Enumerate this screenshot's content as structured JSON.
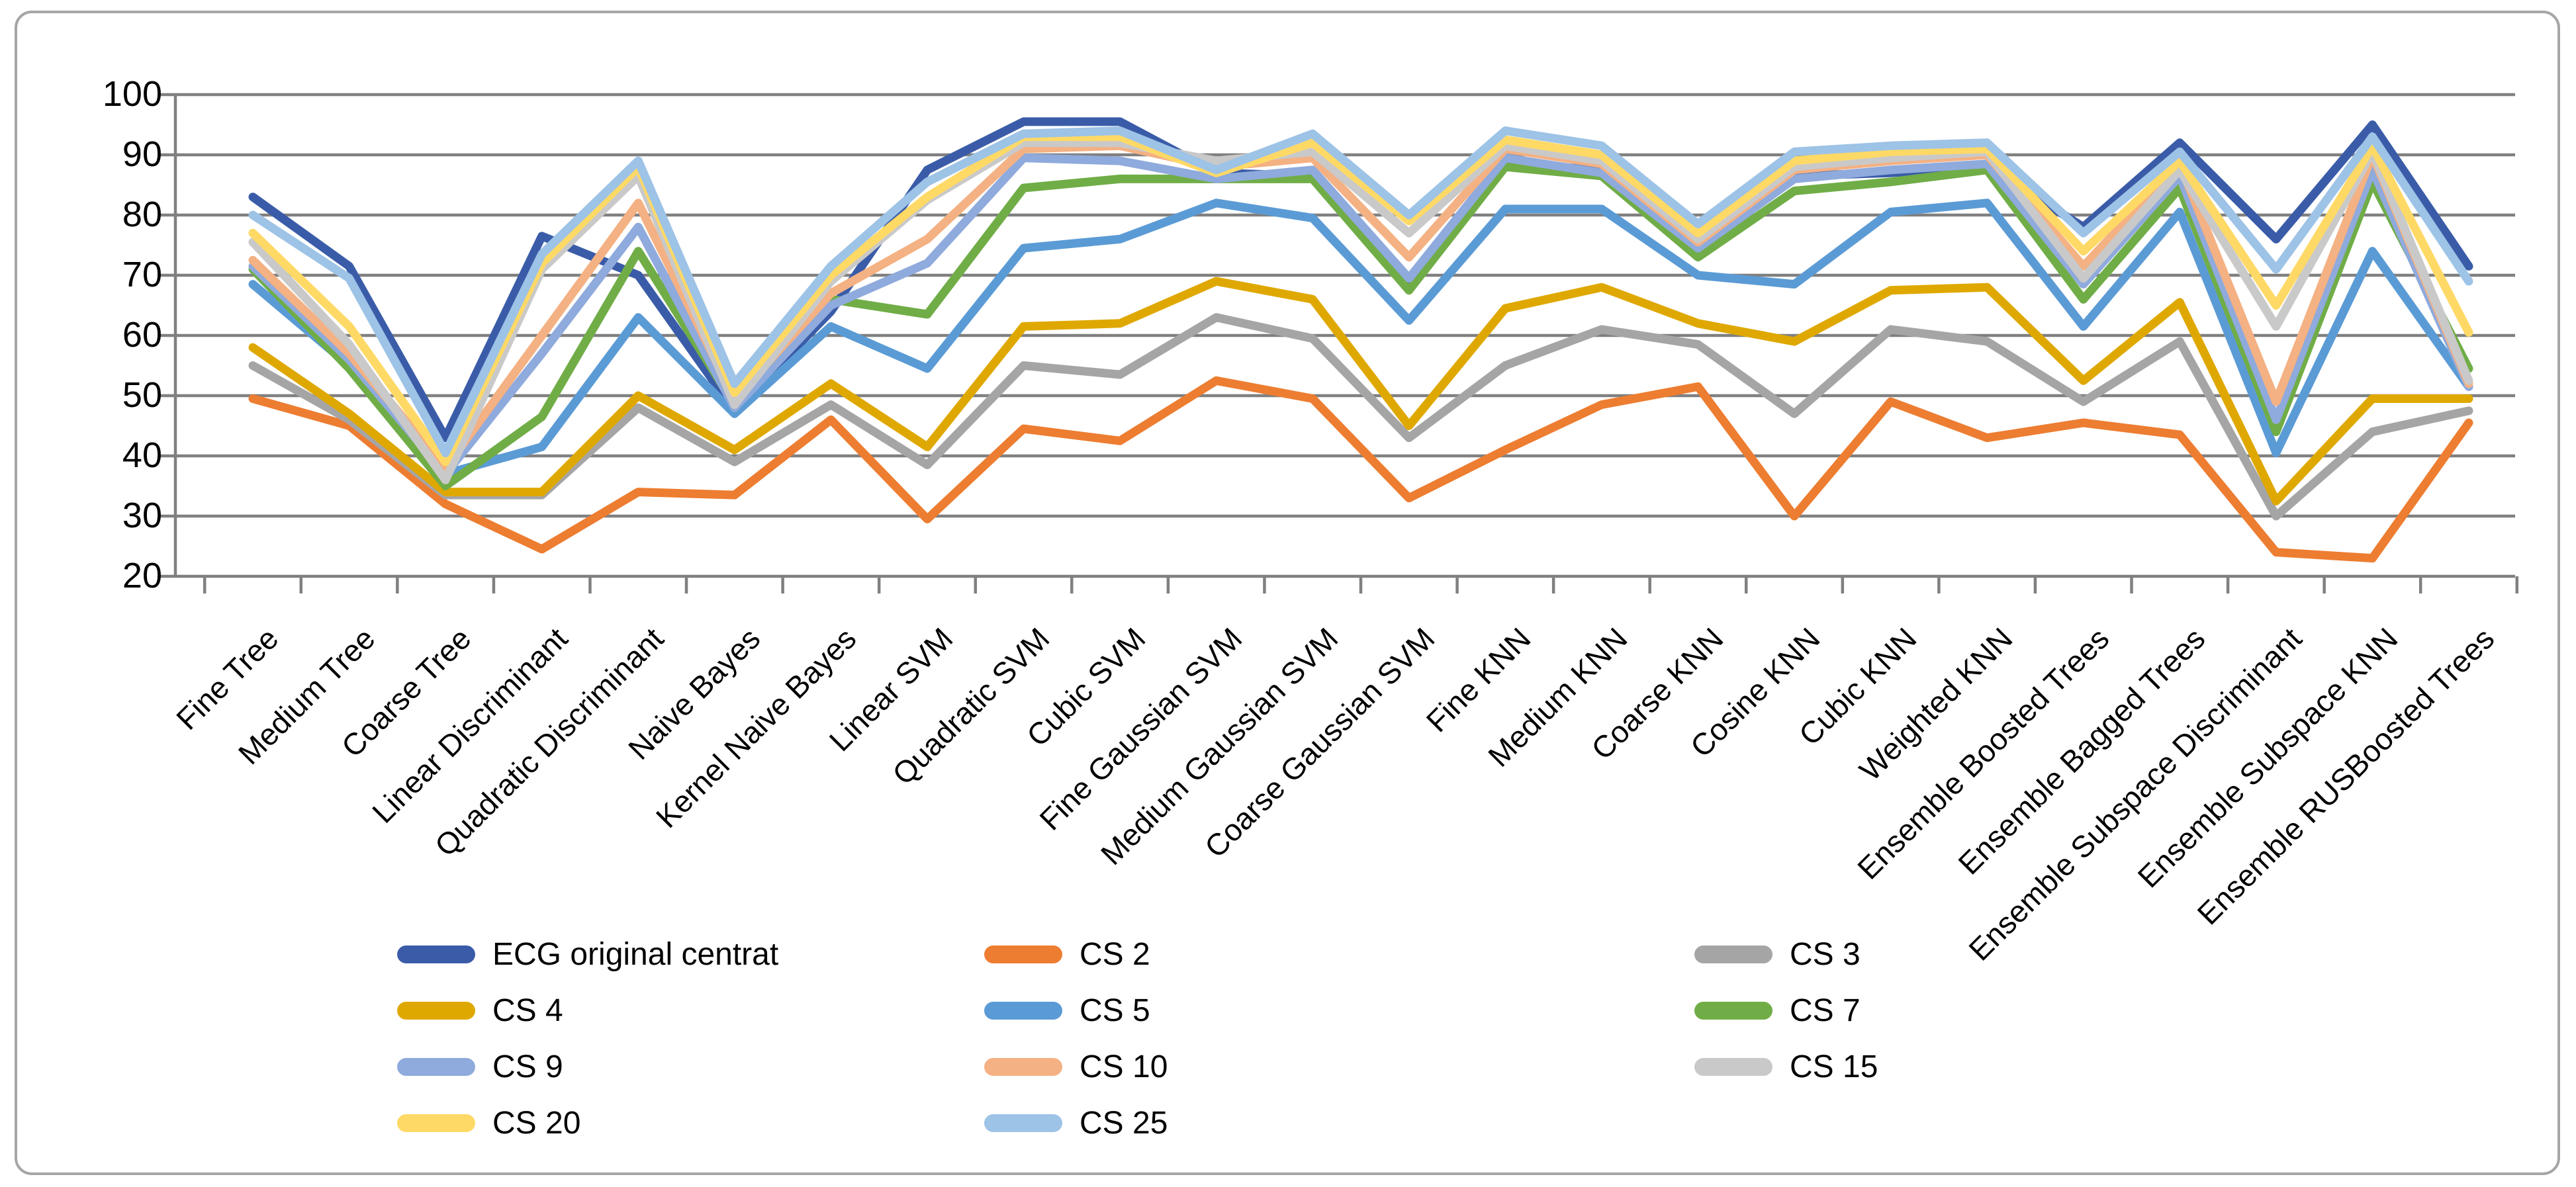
{
  "chart_data": {
    "type": "line",
    "title": "",
    "xlabel": "",
    "ylabel": "",
    "ylim": [
      20,
      100
    ],
    "ytick_step": 10,
    "grid": "horizontal",
    "legend_position": "bottom",
    "categories": [
      "Fine Tree",
      "Medium Tree",
      "Coarse Tree",
      "Linear Discriminant",
      "Quadratic Discriminant",
      "Naive Bayes",
      "Kernel Naive Bayes",
      "Linear SVM",
      "Quadratic SVM",
      "Cubic SVM",
      "Fine Gaussian SVM",
      "Medium Gaussian SVM",
      "Coarse Gaussian SVM",
      "Fine KNN",
      "Medium KNN",
      "Coarse KNN",
      "Cosine KNN",
      "Cubic KNN",
      "Weighted KNN",
      "Ensemble Boosted Trees",
      "Ensemble Bagged Trees",
      "Ensemble Subspace Discriminant",
      "Ensemble Subspace KNN",
      "Ensemble RUSBoosted Trees"
    ],
    "series": [
      {
        "name": "ECG original centrat",
        "color": "#3A5CA8",
        "values": [
          83,
          71.5,
          43,
          76.5,
          70,
          47.5,
          64,
          87.5,
          95.5,
          95.5,
          87,
          86.5,
          68.5,
          88.5,
          87.5,
          74,
          86.5,
          87,
          88,
          78,
          92,
          76,
          95,
          71.5
        ]
      },
      {
        "name": "CS 2",
        "color": "#ED7D31",
        "values": [
          49.5,
          45,
          32,
          24.5,
          34,
          33.5,
          46,
          29.5,
          44.5,
          42.5,
          52.5,
          49.5,
          33,
          41,
          48.5,
          51.5,
          30,
          49,
          43,
          45.5,
          43.5,
          24,
          23,
          45.5
        ]
      },
      {
        "name": "CS 3",
        "color": "#A5A5A5",
        "values": [
          55,
          46,
          33.5,
          33.5,
          48,
          39,
          48.5,
          38.5,
          55,
          53.5,
          63,
          59.5,
          43,
          55,
          61,
          58.5,
          47,
          61,
          59,
          49,
          59,
          30,
          44,
          47.5
        ]
      },
      {
        "name": "CS 4",
        "color": "#DFA800",
        "values": [
          58,
          47,
          34,
          34,
          50,
          41,
          52,
          41.5,
          61.5,
          62,
          69,
          66,
          45,
          64.5,
          68,
          62,
          59,
          67.5,
          68,
          52.5,
          65.5,
          32.5,
          49.5,
          49.5
        ]
      },
      {
        "name": "CS 5",
        "color": "#5B9BD5",
        "values": [
          68.5,
          55,
          37,
          41.5,
          63,
          47,
          61.5,
          54.5,
          74.5,
          76,
          82,
          79.5,
          62.5,
          81,
          81,
          70,
          68.5,
          80.5,
          82,
          61.5,
          80.5,
          40.5,
          74,
          51.5
        ]
      },
      {
        "name": "CS 7",
        "color": "#70AD47",
        "values": [
          71,
          54.5,
          35,
          46.5,
          74,
          48.5,
          66,
          63.5,
          84.5,
          86,
          86,
          86,
          67.5,
          88,
          86.5,
          73,
          84,
          85.5,
          87.5,
          66,
          84.5,
          44,
          85.5,
          54.5
        ]
      },
      {
        "name": "CS 9",
        "color": "#8FAADC",
        "values": [
          71.5,
          56,
          37,
          57,
          78,
          48,
          65,
          72,
          89.5,
          89,
          86,
          87.5,
          69.5,
          89.5,
          87,
          74.5,
          86,
          87.5,
          88.5,
          68.5,
          86.5,
          46,
          87.5,
          51.5
        ]
      },
      {
        "name": "CS 10",
        "color": "#F4B183",
        "values": [
          72.5,
          57,
          38,
          60,
          82,
          49.5,
          67,
          76,
          91,
          91.5,
          88,
          89.5,
          73,
          91,
          88.5,
          75.5,
          87.5,
          89,
          90,
          71.5,
          88.5,
          49,
          90,
          52
        ]
      },
      {
        "name": "CS 15",
        "color": "#C9C9C9",
        "values": [
          75.5,
          58.5,
          36,
          71,
          86.5,
          48.5,
          69,
          82.5,
          92,
          92,
          89,
          90.5,
          77,
          91.5,
          89,
          76,
          88,
          89.5,
          90.5,
          69.5,
          87.5,
          61.5,
          90.5,
          52.5
        ]
      },
      {
        "name": "CS 20",
        "color": "#FFD966",
        "values": [
          77,
          61.5,
          39,
          72,
          88,
          50.5,
          70,
          83,
          93,
          93,
          87,
          92,
          79,
          92.5,
          90,
          77,
          89,
          90.5,
          91,
          74,
          89,
          65,
          91.5,
          60.5
        ]
      },
      {
        "name": "CS 25",
        "color": "#9DC3E6",
        "values": [
          80,
          69.5,
          40.5,
          73.5,
          89,
          52,
          71.5,
          85.5,
          93.5,
          94,
          87.5,
          93.5,
          80,
          94,
          91.5,
          78.5,
          90.5,
          91.5,
          92,
          77,
          90.5,
          71,
          93,
          69
        ]
      }
    ],
    "axis_color": "#808080",
    "gridline_color": "#808080"
  }
}
